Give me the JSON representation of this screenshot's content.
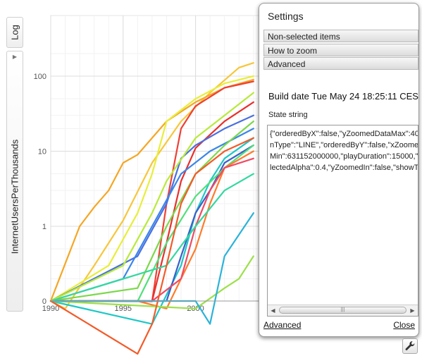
{
  "axis_controls": {
    "y_scale_label": "Log",
    "y_axis_label": "InternetUsersPerThousands"
  },
  "chart_data": {
    "type": "line",
    "x_ticks": [
      "1990",
      "1995",
      "2000"
    ],
    "y_ticks": [
      "0",
      "1",
      "10",
      "100"
    ],
    "ylabel": "InternetUsersPerThousands",
    "y_scale": "log",
    "grid": true,
    "series": [
      {
        "color": "#f7c63a",
        "x": [
          1990,
          1991,
          1993,
          1995,
          1997,
          1999,
          2001,
          2003,
          2004
        ],
        "y": [
          0,
          0.08,
          0.3,
          1.2,
          7,
          25,
          60,
          130,
          150
        ]
      },
      {
        "color": "#f5a623",
        "x": [
          1990,
          1992,
          1993,
          1994,
          1995,
          1996,
          1998,
          2000,
          2002,
          2004
        ],
        "y": [
          0,
          1,
          1.8,
          3,
          7,
          9,
          25,
          45,
          70,
          90
        ]
      },
      {
        "color": "#e8ee3a",
        "x": [
          1990,
          1994,
          1996,
          1997,
          1998,
          2000,
          2002,
          2004
        ],
        "y": [
          0,
          0.3,
          1.5,
          5,
          25,
          50,
          80,
          100
        ]
      },
      {
        "color": "#ef4034",
        "x": [
          1990,
          1996,
          1997,
          1998,
          1999,
          2000,
          2002,
          2004
        ],
        "y": [
          0,
          0,
          0.1,
          2,
          20,
          40,
          70,
          85
        ]
      },
      {
        "color": "#e9302c",
        "x": [
          1990,
          1997,
          1998,
          1999,
          2000,
          2002,
          2004
        ],
        "y": [
          0,
          0,
          0.6,
          4,
          11,
          25,
          45
        ]
      },
      {
        "color": "#4a6fe0",
        "x": [
          1990,
          1996,
          1998,
          1999,
          2000,
          2002,
          2004
        ],
        "y": [
          0,
          0.4,
          2,
          8,
          12,
          20,
          30
        ]
      },
      {
        "color": "#3a86e8",
        "x": [
          1990,
          1995,
          1997,
          1999,
          2001,
          2004
        ],
        "y": [
          0,
          0.2,
          1,
          5,
          10,
          20
        ]
      },
      {
        "color": "#7bd84a",
        "x": [
          1990,
          1996,
          1998,
          2000,
          2002,
          2004
        ],
        "y": [
          0,
          0.15,
          1,
          5,
          12,
          25
        ]
      },
      {
        "color": "#1ec8c6",
        "x": [
          1990,
          1997,
          1999,
          2000,
          2001,
          2002,
          2004
        ],
        "y": [
          0,
          0.05,
          0.3,
          1.5,
          4,
          8,
          15
        ]
      },
      {
        "color": "#3b5fc9",
        "x": [
          1990,
          1998,
          1999,
          2000,
          2001,
          2002,
          2004
        ],
        "y": [
          0,
          0,
          0.4,
          1.5,
          3,
          7,
          12
        ]
      },
      {
        "color": "#50e07a",
        "x": [
          1990,
          1996,
          1998,
          2000,
          2002,
          2004
        ],
        "y": [
          0,
          0.1,
          0.6,
          2.5,
          6,
          12
        ]
      },
      {
        "color": "#ff7b2c",
        "x": [
          1990,
          1996,
          1998,
          2000,
          2001,
          2002,
          2004
        ],
        "y": [
          0,
          0,
          0.08,
          0.5,
          2,
          6,
          10
        ]
      },
      {
        "color": "#f04a64",
        "x": [
          1990,
          1997,
          1999,
          2000,
          2001,
          2002,
          2004
        ],
        "y": [
          0,
          0,
          0.2,
          1,
          3,
          6,
          8
        ]
      },
      {
        "color": "#b8ea3a",
        "x": [
          1990,
          1995,
          1997,
          1998,
          2000,
          2002,
          2004
        ],
        "y": [
          0,
          0.3,
          1.5,
          4,
          15,
          30,
          60
        ]
      },
      {
        "color": "#9de04a",
        "x": [
          1990,
          2000,
          2002,
          2003,
          2004
        ],
        "y": [
          0,
          0.08,
          0.15,
          0.2,
          0.4
        ]
      },
      {
        "color": "#2bb3d9",
        "x": [
          1990,
          2000,
          2001,
          2002,
          2004
        ],
        "y": [
          0,
          0,
          0.05,
          0.4,
          1.5
        ]
      },
      {
        "color": "#33d8a0",
        "x": [
          1990,
          1998,
          2000,
          2002,
          2004
        ],
        "y": [
          0,
          0.3,
          1,
          3,
          5
        ]
      },
      {
        "color": "#f25b2a",
        "x": [
          1990,
          1996,
          1997,
          1998,
          1999,
          2000,
          2002,
          2004
        ],
        "y": [
          0,
          0.02,
          0.05,
          0.3,
          2,
          5,
          10,
          15
        ]
      }
    ]
  },
  "settings": {
    "title": "Settings",
    "sections": [
      "Non-selected items",
      "How  to zoom",
      "Advanced"
    ],
    "build_date": "Build date Tue May 24 18:25:11 CES",
    "state_label": "State string",
    "state_lines": [
      "{\"orderedByX\":false,\"yZoomedDataMax\":40",
      "nType\":\"LINE\",\"orderedByY\":false,\"xZoome",
      "Min\":631152000000,\"playDuration\":15000,\"n",
      "lectedAlpha\":0.4,\"yZoomedIn\":false,\"showT"
    ],
    "footer_left": "Advanced",
    "footer_right": "Close"
  },
  "icons": {
    "wrench": "wrench-icon"
  }
}
